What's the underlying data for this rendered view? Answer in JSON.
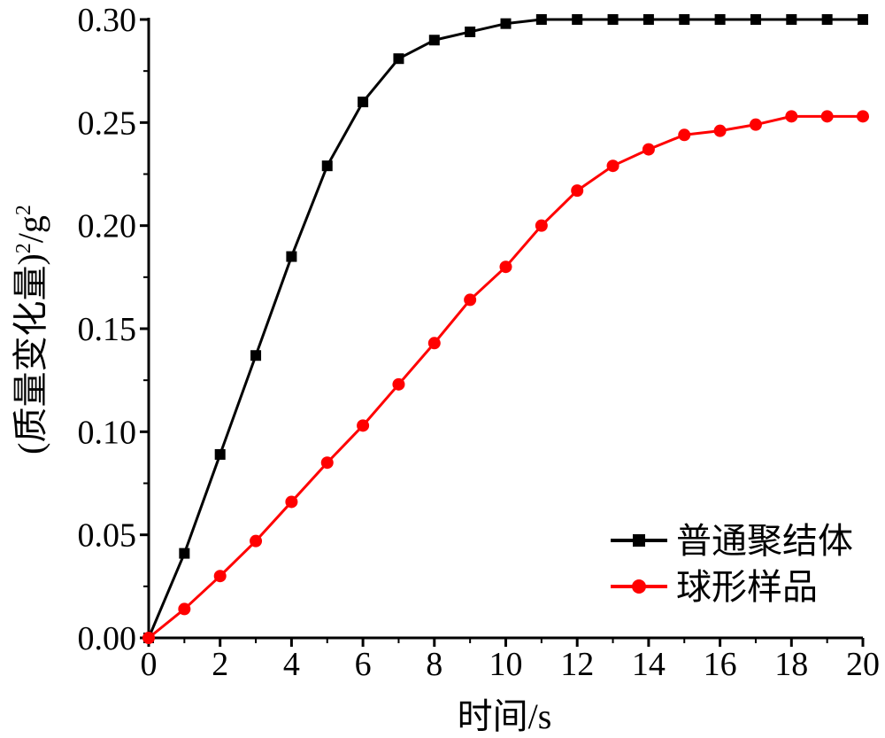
{
  "chart_data": {
    "type": "line",
    "title": "",
    "xlabel": "时间/s",
    "ylabel_main": "(质量变化量)",
    "ylabel_sup": "2",
    "ylabel_unit": "/g",
    "ylabel_unit_sup": "2",
    "xlim": [
      0,
      20
    ],
    "ylim": [
      0,
      0.3
    ],
    "xticks": [
      0,
      2,
      4,
      6,
      8,
      10,
      12,
      14,
      16,
      18,
      20
    ],
    "xtick_labels": [
      "0",
      "2",
      "4",
      "6",
      "8",
      "10",
      "12",
      "14",
      "16",
      "18",
      "20"
    ],
    "yticks": [
      0,
      0.05,
      0.1,
      0.15,
      0.2,
      0.25,
      0.3
    ],
    "ytick_labels": [
      "0.00",
      "0.05",
      "0.10",
      "0.15",
      "0.20",
      "0.25",
      "0.30"
    ],
    "grid": false,
    "legend_position": "bottom-right",
    "series": [
      {
        "name": "普通聚结体",
        "color": "#000000",
        "marker": "square",
        "x": [
          0,
          1,
          2,
          3,
          4,
          5,
          6,
          7,
          8,
          9,
          10,
          11,
          12,
          13,
          14,
          15,
          16,
          17,
          18,
          19,
          20
        ],
        "values": [
          0.0,
          0.041,
          0.089,
          0.137,
          0.185,
          0.229,
          0.26,
          0.281,
          0.29,
          0.294,
          0.298,
          0.3,
          0.3,
          0.3,
          0.3,
          0.3,
          0.3,
          0.3,
          0.3,
          0.3,
          0.3
        ]
      },
      {
        "name": "球形样品",
        "color": "#ff0000",
        "marker": "circle",
        "x": [
          0,
          1,
          2,
          3,
          4,
          5,
          6,
          7,
          8,
          9,
          10,
          11,
          12,
          13,
          14,
          15,
          16,
          17,
          18,
          19,
          20
        ],
        "values": [
          0.0,
          0.014,
          0.03,
          0.047,
          0.066,
          0.085,
          0.103,
          0.123,
          0.143,
          0.164,
          0.18,
          0.2,
          0.217,
          0.229,
          0.237,
          0.244,
          0.246,
          0.249,
          0.253,
          0.253,
          0.253
        ]
      }
    ]
  }
}
